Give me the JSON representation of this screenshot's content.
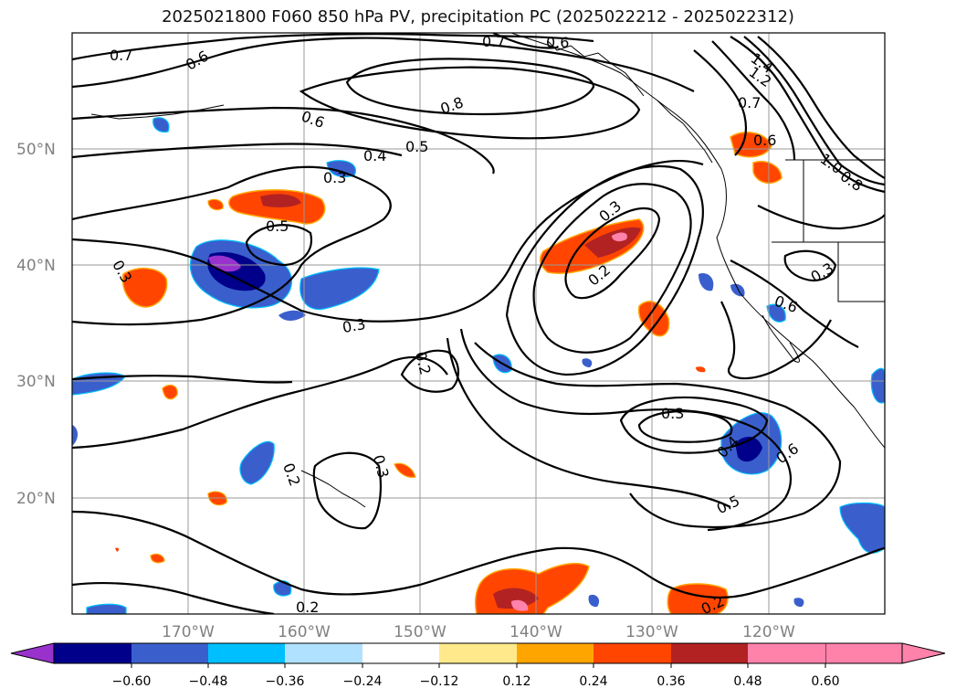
{
  "title": "2025021800 F060 850 hPa PV, precipitation PC (2025022212 - 2025022312)",
  "lat_labels": [
    "50°N",
    "40°N",
    "30°N",
    "20°N"
  ],
  "lon_labels": [
    "170°W",
    "160°W",
    "150°W",
    "140°W",
    "130°W",
    "120°W"
  ],
  "colorbar": {
    "colors": [
      "#9932cc",
      "#00008b",
      "#3a5fcd",
      "#00bfff",
      "#b0e2ff",
      "#ffffff",
      "#ffe98a",
      "#ffa500",
      "#ff4500",
      "#b22222",
      "#ff82ab"
    ],
    "ticks": [
      "−0.60",
      "−0.48",
      "−0.36",
      "−0.24",
      "−0.12",
      "0.12",
      "0.24",
      "0.36",
      "0.48",
      "0.60"
    ]
  },
  "contour_labels": [
    "0.7",
    "0.6",
    "0.7",
    "0.6",
    "1.4",
    "1.2",
    "0.8",
    "0.6",
    "0.7",
    "0.6",
    "0.5",
    "0.4",
    "0.3",
    "0.5",
    "1.0",
    "0.8",
    "0.3",
    "0.3",
    "0.2",
    "0.3",
    "0.3",
    "0.6",
    "0.2",
    "0.3",
    "0.4",
    "0.6",
    "0.5",
    "0.2",
    "0.3",
    "0.2",
    "0.2"
  ]
}
